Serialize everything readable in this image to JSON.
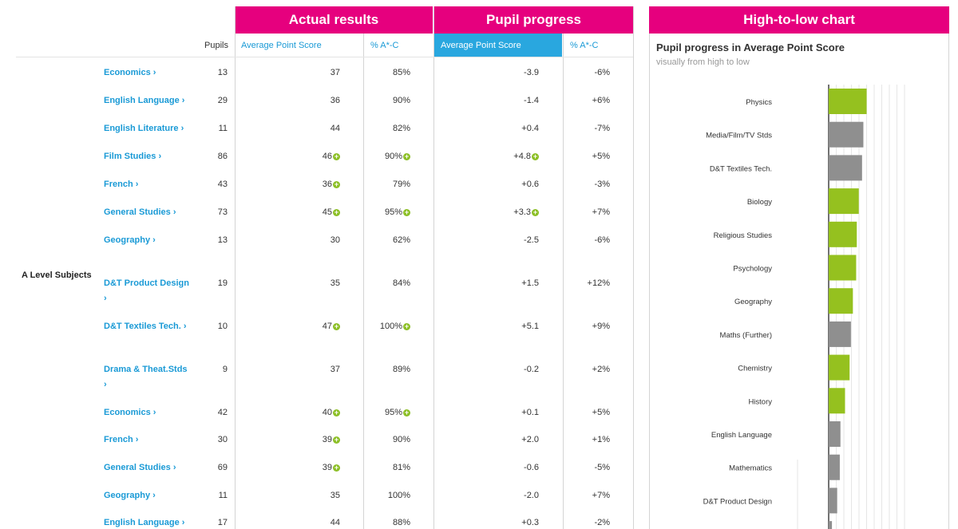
{
  "headers": {
    "actual": "Actual results",
    "progress": "Pupil progress",
    "chart": "High-to-low chart"
  },
  "columns": {
    "pupils": "Pupils",
    "aps": "Average Point Score",
    "ac": "% A*-C",
    "p_aps": "Average Point Score",
    "p_ac": "% A*-C"
  },
  "group_label": "A Level Subjects",
  "rows": [
    {
      "subject": "Economics",
      "pupils": "13",
      "aps": "37",
      "ac": "85%",
      "p_aps": "-3.9",
      "p_ac": "-6%"
    },
    {
      "subject": "English Language",
      "pupils": "29",
      "aps": "36",
      "ac": "90%",
      "p_aps": "-1.4",
      "p_ac": "+6%"
    },
    {
      "subject": "English Literature",
      "pupils": "11",
      "aps": "44",
      "ac": "82%",
      "p_aps": "+0.4",
      "p_ac": "-7%"
    },
    {
      "subject": "Film Studies",
      "pupils": "86",
      "aps": "46",
      "ac": "90%",
      "p_aps": "+4.8",
      "p_ac": "+5%",
      "plus_aps": true,
      "plus_ac": true,
      "plus_paps": true
    },
    {
      "subject": "French",
      "pupils": "43",
      "aps": "36",
      "ac": "79%",
      "p_aps": "+0.6",
      "p_ac": "-3%",
      "plus_aps": true
    },
    {
      "subject": "General Studies",
      "pupils": "73",
      "aps": "45",
      "ac": "95%",
      "p_aps": "+3.3",
      "p_ac": "+7%",
      "plus_aps": true,
      "plus_ac": true,
      "plus_paps": true
    },
    {
      "subject": "Geography",
      "pupils": "13",
      "aps": "30",
      "ac": "62%",
      "p_aps": "-2.5",
      "p_ac": "-6%"
    },
    {
      "subject": "D&T Product Design",
      "pupils": "19",
      "aps": "35",
      "ac": "84%",
      "p_aps": "+1.5",
      "p_ac": "+12%"
    },
    {
      "subject": "D&T Textiles Tech.",
      "pupils": "10",
      "aps": "47",
      "ac": "100%",
      "p_aps": "+5.1",
      "p_ac": "+9%",
      "plus_aps": true,
      "plus_ac": true
    },
    {
      "subject": "Drama & Theat.Stds",
      "pupils": "9",
      "aps": "37",
      "ac": "89%",
      "p_aps": "-0.2",
      "p_ac": "+2%"
    },
    {
      "subject": "Economics",
      "pupils": "42",
      "aps": "40",
      "ac": "95%",
      "p_aps": "+0.1",
      "p_ac": "+5%",
      "plus_aps": true,
      "plus_ac": true
    },
    {
      "subject": "French",
      "pupils": "30",
      "aps": "39",
      "ac": "90%",
      "p_aps": "+2.0",
      "p_ac": "+1%",
      "plus_aps": true
    },
    {
      "subject": "General Studies",
      "pupils": "69",
      "aps": "39",
      "ac": "81%",
      "p_aps": "-0.6",
      "p_ac": "-5%",
      "plus_aps": true
    },
    {
      "subject": "Geography",
      "pupils": "11",
      "aps": "35",
      "ac": "100%",
      "p_aps": "-2.0",
      "p_ac": "+7%"
    },
    {
      "subject": "English Language",
      "pupils": "17",
      "aps": "44",
      "ac": "88%",
      "p_aps": "+0.3",
      "p_ac": "-2%"
    }
  ],
  "chart_panel": {
    "title": "Pupil progress in Average Point Score",
    "subtitle": "visually from high to low"
  },
  "chart_data": {
    "type": "bar",
    "orientation": "horizontal",
    "title": "Pupil progress in Average Point Score",
    "subtitle": "visually from high to low",
    "categories": [
      "Physics",
      "Media/Film/TV Stds",
      "D&T Textiles Tech.",
      "Biology",
      "Religious Studies",
      "Psychology",
      "Geography",
      "Maths (Further)",
      "Chemistry",
      "History",
      "English Language",
      "Mathematics",
      "D&T Product Design",
      ""
    ],
    "values": [
      5.8,
      5.3,
      5.1,
      4.6,
      4.3,
      4.2,
      3.7,
      3.4,
      3.2,
      2.5,
      1.8,
      1.7,
      1.3,
      0.5
    ],
    "colors": [
      "#95c11f",
      "#8f8f8f",
      "#8f8f8f",
      "#95c11f",
      "#95c11f",
      "#95c11f",
      "#95c11f",
      "#8f8f8f",
      "#95c11f",
      "#95c11f",
      "#8f8f8f",
      "#8f8f8f",
      "#8f8f8f",
      "#8f8f8f"
    ],
    "grid": true,
    "xlim": [
      0,
      10
    ]
  },
  "colors": {
    "header": "#e6007e",
    "link": "#1a9ad6",
    "active_column": "#29a7df",
    "significant": "#8cbf26"
  }
}
